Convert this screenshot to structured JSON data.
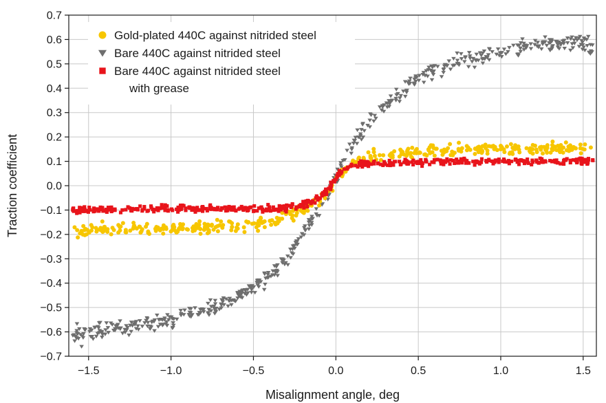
{
  "chart_data": {
    "type": "scatter",
    "xlabel": "Misalignment angle, deg",
    "ylabel": "Traction coefficient",
    "xlim": [
      -1.62,
      1.58
    ],
    "ylim": [
      -0.7,
      0.7
    ],
    "xticks": [
      -1.5,
      -1.0,
      -0.5,
      0.0,
      0.5,
      1.0,
      1.5
    ],
    "xtick_labels": [
      "−1.5",
      "−1.0",
      "−0.5",
      "0.0",
      "0.5",
      "1.0",
      "1.5"
    ],
    "yticks": [
      0.7,
      0.6,
      0.5,
      0.4,
      0.3,
      0.2,
      0.1,
      0.0,
      -0.1,
      -0.2,
      -0.3,
      -0.4,
      -0.5,
      -0.6,
      -0.7
    ],
    "ytick_labels": [
      "0.7",
      "0.6",
      "0.5",
      "0.4",
      "0.3",
      "0.2",
      "0.1",
      "0.0",
      "−0.1",
      "−0.2",
      "−0.3",
      "−0.4",
      "−0.5",
      "−0.6",
      "−0.7"
    ],
    "grid": true,
    "legend_position": "top-left",
    "series": [
      {
        "name": "Gold-plated 440C against nitrided steel",
        "marker": "circle",
        "color": "#f7c600",
        "x_range": [
          -1.6,
          1.56
        ],
        "points": [
          [
            -1.6,
            -0.19
          ],
          [
            -1.5,
            -0.18
          ],
          [
            -1.25,
            -0.175
          ],
          [
            -1.0,
            -0.175
          ],
          [
            -0.75,
            -0.17
          ],
          [
            -0.5,
            -0.16
          ],
          [
            -0.35,
            -0.14
          ],
          [
            -0.2,
            -0.1
          ],
          [
            -0.1,
            -0.06
          ],
          [
            -0.05,
            -0.03
          ],
          [
            0.0,
            0.02
          ],
          [
            0.05,
            0.07
          ],
          [
            0.1,
            0.1
          ],
          [
            0.2,
            0.12
          ],
          [
            0.35,
            0.13
          ],
          [
            0.5,
            0.14
          ],
          [
            0.75,
            0.145
          ],
          [
            1.0,
            0.15
          ],
          [
            1.25,
            0.155
          ],
          [
            1.5,
            0.155
          ],
          [
            1.56,
            0.16
          ]
        ]
      },
      {
        "name": "Bare 440C against nitrided steel",
        "marker": "triangle-down",
        "color": "#6e6e6e",
        "x_range": [
          -1.6,
          1.56
        ],
        "points": [
          [
            -1.6,
            -0.61
          ],
          [
            -1.5,
            -0.6
          ],
          [
            -1.25,
            -0.58
          ],
          [
            -1.0,
            -0.55
          ],
          [
            -0.75,
            -0.5
          ],
          [
            -0.5,
            -0.42
          ],
          [
            -0.4,
            -0.37
          ],
          [
            -0.3,
            -0.3
          ],
          [
            -0.2,
            -0.2
          ],
          [
            -0.1,
            -0.1
          ],
          [
            0.0,
            0.03
          ],
          [
            0.1,
            0.16
          ],
          [
            0.2,
            0.26
          ],
          [
            0.3,
            0.33
          ],
          [
            0.4,
            0.39
          ],
          [
            0.5,
            0.44
          ],
          [
            0.75,
            0.51
          ],
          [
            1.0,
            0.55
          ],
          [
            1.25,
            0.58
          ],
          [
            1.5,
            0.59
          ],
          [
            1.55,
            0.55
          ]
        ]
      },
      {
        "name": "Bare 440C against nitrided steel\nwith grease",
        "marker": "square",
        "color": "#e8141b",
        "x_range": [
          -1.6,
          1.56
        ],
        "points": [
          [
            -1.6,
            -0.1
          ],
          [
            -1.5,
            -0.1
          ],
          [
            -1.25,
            -0.095
          ],
          [
            -1.0,
            -0.095
          ],
          [
            -0.75,
            -0.095
          ],
          [
            -0.5,
            -0.095
          ],
          [
            -0.3,
            -0.09
          ],
          [
            -0.2,
            -0.08
          ],
          [
            -0.1,
            -0.05
          ],
          [
            -0.05,
            -0.02
          ],
          [
            0.0,
            0.03
          ],
          [
            0.05,
            0.07
          ],
          [
            0.1,
            0.085
          ],
          [
            0.2,
            0.09
          ],
          [
            0.5,
            0.095
          ],
          [
            0.75,
            0.1
          ],
          [
            1.0,
            0.1
          ],
          [
            1.25,
            0.1
          ],
          [
            1.5,
            0.1
          ],
          [
            1.56,
            0.1
          ]
        ]
      }
    ],
    "legend": [
      {
        "label_lines": [
          "Gold-plated 440C against nitrided steel"
        ],
        "marker": "circle",
        "color": "#f7c600"
      },
      {
        "label_lines": [
          "Bare 440C against nitrided steel"
        ],
        "marker": "triangle-down",
        "color": "#6e6e6e"
      },
      {
        "label_lines": [
          "Bare 440C against nitrided steel",
          "with grease"
        ],
        "marker": "square",
        "color": "#e8141b"
      }
    ]
  }
}
